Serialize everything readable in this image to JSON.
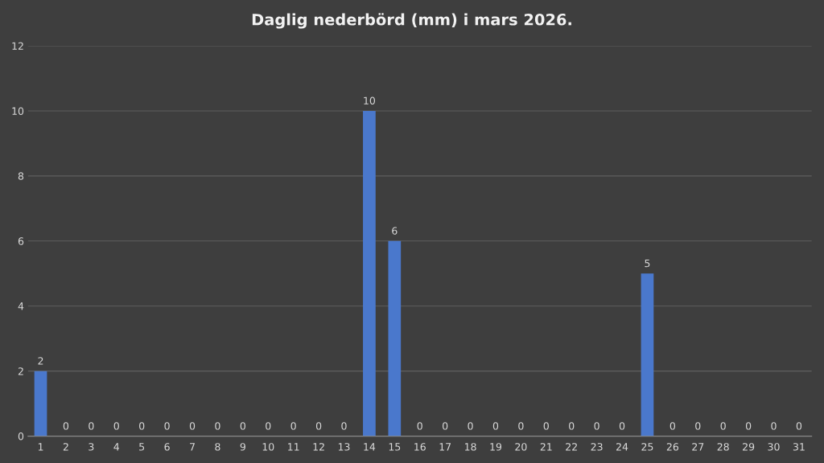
{
  "chart_data": {
    "type": "bar",
    "title": "Daglig nederbörd (mm) i mars 2026.",
    "categories": [
      "1",
      "2",
      "3",
      "4",
      "5",
      "6",
      "7",
      "8",
      "9",
      "10",
      "11",
      "12",
      "13",
      "14",
      "15",
      "16",
      "17",
      "18",
      "19",
      "20",
      "21",
      "22",
      "23",
      "24",
      "25",
      "26",
      "27",
      "28",
      "29",
      "30",
      "31"
    ],
    "values": [
      2,
      0,
      0,
      0,
      0,
      0,
      0,
      0,
      0,
      0,
      0,
      0,
      0,
      10,
      6,
      0,
      0,
      0,
      0,
      0,
      0,
      0,
      0,
      0,
      5,
      0,
      0,
      0,
      0,
      0,
      0
    ],
    "color": "#4a78cc",
    "ylim": [
      0,
      12
    ],
    "yticks": [
      0,
      2,
      4,
      6,
      8,
      10,
      12
    ],
    "grid": "y",
    "data_labels": true
  }
}
